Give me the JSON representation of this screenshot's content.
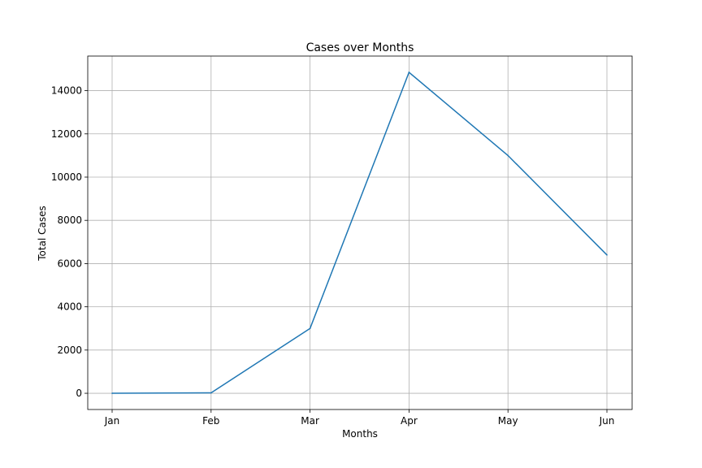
{
  "chart_data": {
    "type": "line",
    "title": "Cases over Months",
    "xlabel": "Months",
    "ylabel": "Total Cases",
    "categories": [
      "Jan",
      "Feb",
      "Mar",
      "Apr",
      "May",
      "Jun"
    ],
    "series": [
      {
        "values": [
          0,
          20,
          3000,
          14850,
          11000,
          6400
        ],
        "color": "#1f77b4"
      }
    ],
    "yticks": [
      0,
      2000,
      4000,
      6000,
      8000,
      10000,
      12000,
      14000
    ],
    "ylim": [
      -750,
      15600
    ],
    "grid": true
  }
}
